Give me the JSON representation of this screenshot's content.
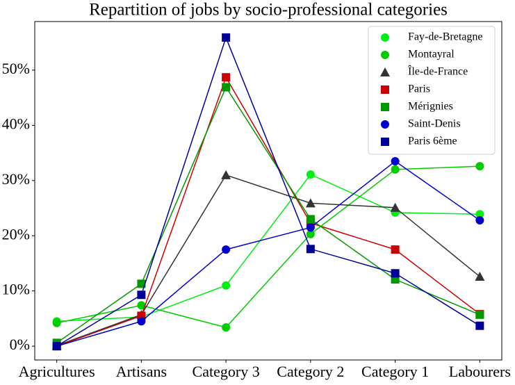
{
  "chart_data": {
    "type": "line",
    "title": "Repartition of jobs by socio-professional categories",
    "categories": [
      "Agricultures",
      "Artisans",
      "Category 3",
      "Category 2",
      "Category 1",
      "Labourers"
    ],
    "series": [
      {
        "name": "Fay-de-Bretagne",
        "color": "#00ee11",
        "marker": "circle",
        "values": [
          4.5,
          5.3,
          11.0,
          31.1,
          24.2,
          23.9
        ]
      },
      {
        "name": "Montayral",
        "color": "#00cc00",
        "marker": "circle",
        "values": [
          4.2,
          7.4,
          3.4,
          20.3,
          32.0,
          32.6
        ]
      },
      {
        "name": "Île-de-France",
        "color": "#333333",
        "marker": "triangle",
        "values": [
          0.1,
          5.7,
          31.0,
          25.9,
          25.1,
          12.6
        ]
      },
      {
        "name": "Paris",
        "color": "#cc0000",
        "marker": "square",
        "values": [
          0.0,
          5.5,
          48.7,
          22.3,
          17.5,
          5.8
        ]
      },
      {
        "name": "Mérignies",
        "color": "#009900",
        "marker": "square",
        "values": [
          0.6,
          11.3,
          46.9,
          23.0,
          12.1,
          5.7
        ]
      },
      {
        "name": "Saint-Denis",
        "color": "#0000cc",
        "marker": "circle",
        "values": [
          0.0,
          4.5,
          17.5,
          21.5,
          33.5,
          22.8
        ]
      },
      {
        "name": "Paris 6ème",
        "color": "#000099",
        "marker": "square",
        "values": [
          0.0,
          9.3,
          55.9,
          17.6,
          13.2,
          3.7
        ]
      }
    ],
    "ylim": [
      -2.5,
      58.8
    ],
    "yticks": [
      {
        "value": 0,
        "label": "0%"
      },
      {
        "value": 10,
        "label": "10%"
      },
      {
        "value": 20,
        "label": "20%"
      },
      {
        "value": 30,
        "label": "30%"
      },
      {
        "value": 40,
        "label": "40%"
      },
      {
        "value": 50,
        "label": "50%"
      }
    ],
    "legend": "upper right"
  }
}
